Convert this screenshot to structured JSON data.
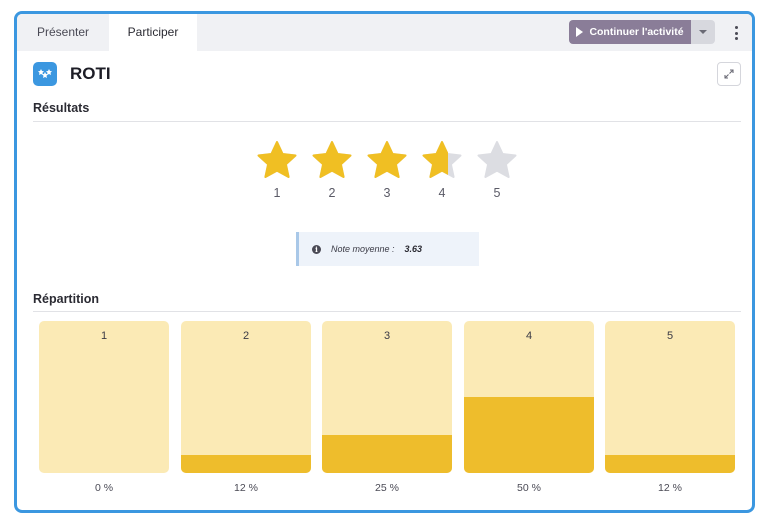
{
  "tabs": [
    {
      "label": "Présenter"
    },
    {
      "label": "Participer"
    }
  ],
  "toolbar": {
    "continue_label": "Continuer l'activité"
  },
  "header": {
    "title": "ROTI"
  },
  "results": {
    "title": "Résultats",
    "stars": [
      {
        "label": "1",
        "fill": 1
      },
      {
        "label": "2",
        "fill": 1
      },
      {
        "label": "3",
        "fill": 1
      },
      {
        "label": "4",
        "fill": 0.63
      },
      {
        "label": "5",
        "fill": 0
      }
    ],
    "average_label": "Note moyenne :",
    "average_value": "3.63"
  },
  "distribution": {
    "title": "Répartition",
    "bars": [
      {
        "label": "1",
        "percent": 0,
        "percent_label": "0 %"
      },
      {
        "label": "2",
        "percent": 12,
        "percent_label": "12 %"
      },
      {
        "label": "3",
        "percent": 25,
        "percent_label": "25 %"
      },
      {
        "label": "4",
        "percent": 50,
        "percent_label": "50 %"
      },
      {
        "label": "5",
        "percent": 12,
        "percent_label": "12 %"
      }
    ]
  },
  "colors": {
    "accent": "#3b97e0",
    "star": "#f0bf23",
    "star_empty": "#dcdde2",
    "bar_bg": "#fbeab5",
    "bar_fill": "#eebd2c"
  },
  "icons": [
    "play-icon",
    "chevron-down-icon",
    "more-vertical-icon",
    "roti-app-icon",
    "expand-icon",
    "info-icon",
    "star-icon"
  ]
}
